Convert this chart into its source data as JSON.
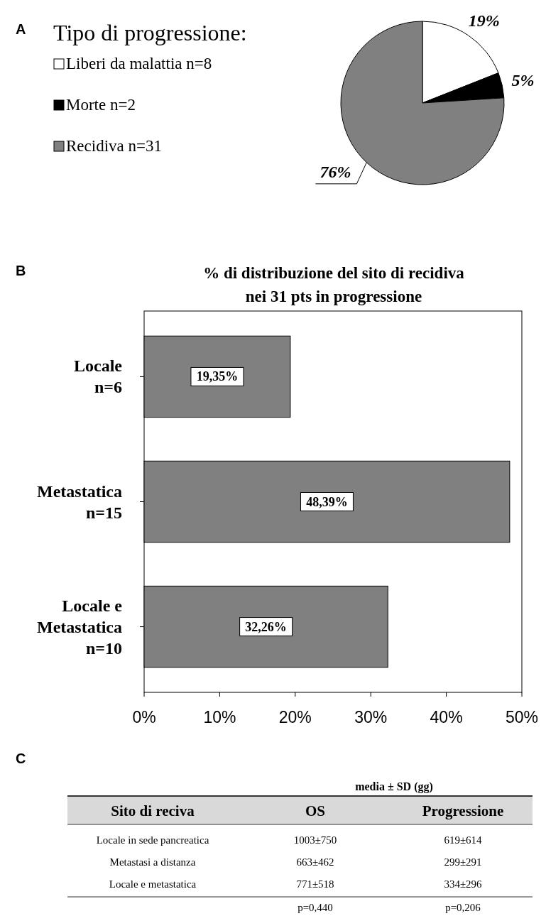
{
  "chart_data": [
    {
      "type": "pie",
      "title": "Tipo di progressione:",
      "annotations": [
        "A"
      ],
      "legend": "left",
      "categories": [
        "Liberi da malattia n=8",
        "Morte n=2",
        "Recidiva n=31"
      ],
      "values": [
        19,
        5,
        76
      ],
      "colors": [
        "#ffffff",
        "#000000",
        "#808080"
      ],
      "value_labels": [
        "19%",
        "5%",
        "76%"
      ]
    },
    {
      "type": "bar",
      "orientation": "horizontal",
      "title": "% di distribuzione del sito di recidiva\nnei 31 pts in progressione",
      "annotations": [
        "B"
      ],
      "categories": [
        "Locale\nn=6",
        "Metastatica\nn=15",
        "Locale e\nMetastatica\nn=10"
      ],
      "values": [
        19.35,
        48.39,
        32.26
      ],
      "color": "#808080",
      "value_labels": [
        "19,35%",
        "48,39%",
        "32,26%"
      ],
      "xlim": [
        0,
        50
      ],
      "xticks": [
        {
          "value": 0,
          "label": "0%"
        },
        {
          "value": 10,
          "label": "10%"
        },
        {
          "value": 20,
          "label": "20%"
        },
        {
          "value": 30,
          "label": "30%"
        },
        {
          "value": 40,
          "label": "40%"
        },
        {
          "value": 50,
          "label": "50%"
        }
      ],
      "grid": false
    },
    {
      "type": "other",
      "categories": [
        "Sito di reciva",
        "OS",
        "Progressione"
      ],
      "annotations": [
        "C",
        "media ± SD (gg)",
        "Locale in sede pancreatica",
        "1003±750",
        "619±614",
        "Metastasi a distanza",
        "663±462",
        "299±291",
        "Locale e metastatica",
        "771±518",
        "334±296",
        "p=0,440",
        "p=0,206"
      ]
    }
  ]
}
